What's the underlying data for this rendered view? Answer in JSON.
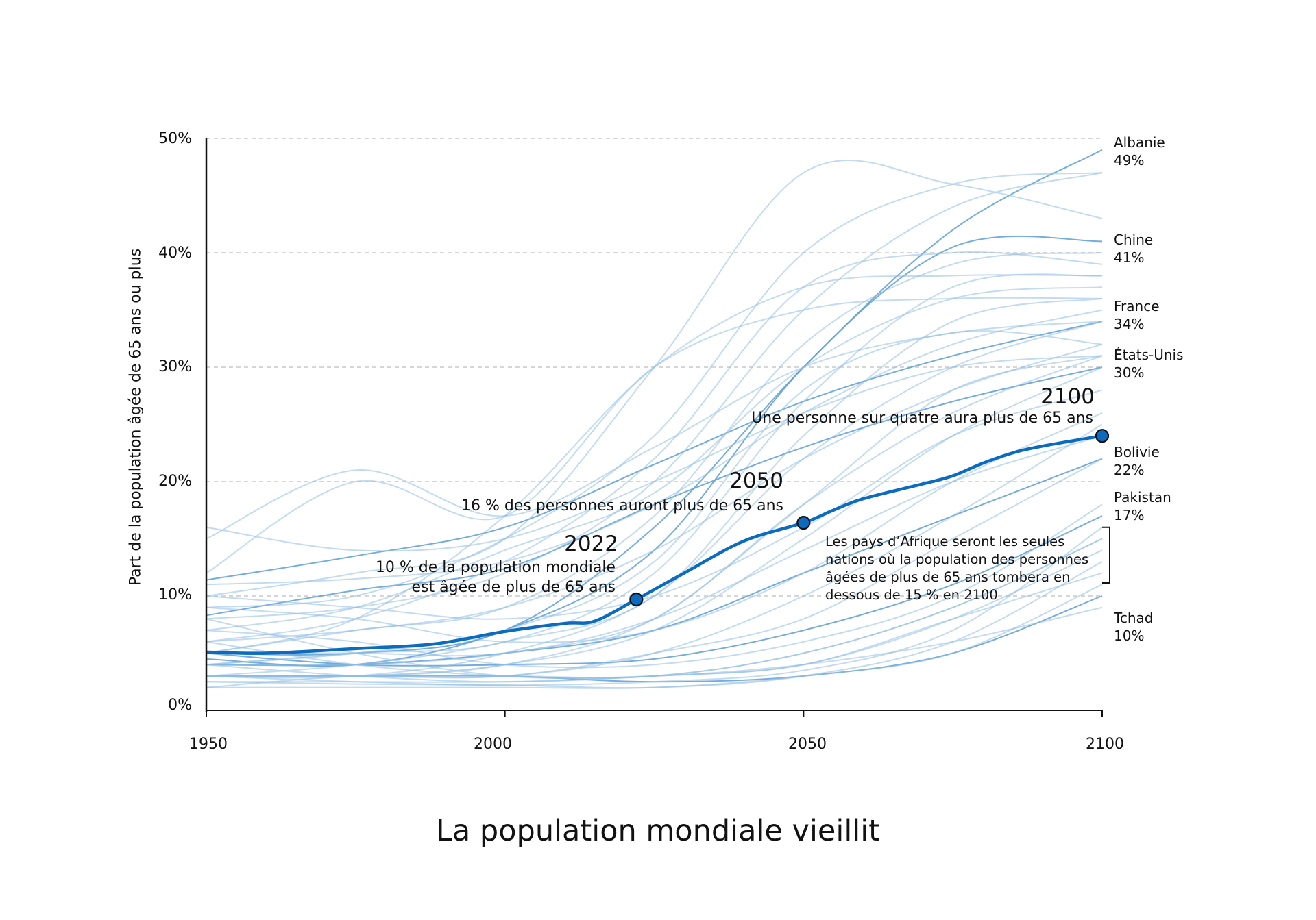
{
  "chart_data": {
    "type": "line",
    "title": "La population mondiale vieillit",
    "ylabel": "Part de la population âgée de 65 ans ou plus",
    "xlabel": "",
    "xlim": [
      1950,
      2100
    ],
    "ylim": [
      0,
      50
    ],
    "x_ticks": [
      "1950",
      "2000",
      "2050",
      "2100"
    ],
    "y_ticks": [
      "0%",
      "10%",
      "20%",
      "30%",
      "40%",
      "50%"
    ],
    "grid": "horizontal dashed",
    "colors": {
      "world": "#0b6cbf",
      "countries": "#8fbde3",
      "grid": "#c8c8c8"
    },
    "world_series": {
      "x": [
        1950,
        1960,
        1975,
        1988,
        2000,
        2010,
        2015,
        2022,
        2030,
        2040,
        2050,
        2055,
        2060,
        2070,
        2075,
        2080,
        2085,
        2090,
        2100
      ],
      "y": [
        5.1,
        5.0,
        5.4,
        5.8,
        6.9,
        7.6,
        7.8,
        9.7,
        12.0,
        14.8,
        16.4,
        17.5,
        18.5,
        19.8,
        20.5,
        21.6,
        22.5,
        23.1,
        24.0
      ]
    },
    "country_x": [
      1950,
      1975,
      2000,
      2025,
      2050,
      2075,
      2100
    ],
    "country_series": [
      {
        "name": "Albanie",
        "label": "Albanie",
        "value_label": "49%",
        "values": [
          5,
          5,
          7,
          16,
          30,
          42,
          49
        ]
      },
      {
        "name": "Chine",
        "label": "Chine",
        "value_label": "41%",
        "values": [
          4.5,
          4,
          7,
          14,
          30,
          40.5,
          41
        ]
      },
      {
        "name": "France",
        "label": "France",
        "value_label": "34%",
        "values": [
          11.4,
          13.5,
          16,
          21.5,
          27,
          31,
          34
        ]
      },
      {
        "name": "États-Unis",
        "label": "États-Unis",
        "value_label": "30%",
        "values": [
          8.3,
          10.5,
          12.4,
          18,
          23,
          27,
          30
        ]
      },
      {
        "name": "Bolivie",
        "label": "Bolivie",
        "value_label": "22%",
        "values": [
          4,
          4,
          5,
          7,
          12,
          17,
          22
        ]
      },
      {
        "name": "Pakistan",
        "label": "Pakistan",
        "value_label": "17%",
        "values": [
          5,
          4,
          4,
          4.5,
          7,
          11,
          17
        ]
      },
      {
        "name": "Tchad",
        "label": "Tchad",
        "value_label": "10%",
        "values": [
          3,
          3,
          3,
          2.5,
          3,
          5,
          10
        ]
      },
      {
        "values": [
          5,
          8,
          17,
          30,
          37,
          38,
          38
        ]
      },
      {
        "values": [
          16,
          14,
          15,
          20,
          26,
          30,
          31
        ]
      },
      {
        "values": [
          15,
          21,
          17,
          23,
          30,
          33,
          34
        ]
      },
      {
        "values": [
          12,
          20,
          17,
          30,
          35,
          36,
          36
        ]
      },
      {
        "values": [
          10,
          12,
          15,
          30,
          47,
          46,
          43
        ]
      },
      {
        "values": [
          9,
          10,
          15,
          24,
          40,
          46,
          47
        ]
      },
      {
        "values": [
          8,
          9,
          12,
          20,
          35,
          44,
          47
        ]
      },
      {
        "values": [
          7,
          9,
          14,
          19,
          30,
          36,
          37
        ]
      },
      {
        "values": [
          6,
          8,
          13,
          22,
          37,
          40,
          39
        ]
      },
      {
        "values": [
          5,
          7,
          9,
          17,
          32,
          39,
          40
        ]
      },
      {
        "values": [
          4,
          5,
          6,
          12,
          27,
          37,
          38
        ]
      },
      {
        "values": [
          3,
          4,
          6,
          10,
          24,
          34,
          36
        ]
      },
      {
        "values": [
          4,
          5,
          7,
          13,
          28,
          33,
          32
        ]
      },
      {
        "values": [
          3,
          3,
          5,
          10,
          22,
          30,
          34
        ]
      },
      {
        "values": [
          3,
          3,
          4,
          8,
          18,
          28,
          31
        ]
      },
      {
        "values": [
          4,
          4,
          5,
          8,
          18,
          26,
          31
        ]
      },
      {
        "values": [
          3,
          3,
          4,
          7,
          15,
          24,
          30
        ]
      },
      {
        "values": [
          3,
          3,
          3,
          5,
          10,
          17,
          25
        ]
      },
      {
        "values": [
          2,
          3,
          3,
          5,
          8,
          15,
          22
        ]
      },
      {
        "values": [
          3,
          3,
          3,
          3,
          5,
          9,
          15
        ]
      },
      {
        "values": [
          2.5,
          2.5,
          2.5,
          3,
          4,
          8,
          14
        ]
      },
      {
        "values": [
          2,
          2,
          2,
          2,
          3,
          5,
          11
        ]
      },
      {
        "values": [
          2.5,
          2.3,
          2.2,
          2,
          3,
          6,
          13
        ]
      },
      {
        "values": [
          3,
          2.5,
          2.2,
          2.5,
          3.5,
          7,
          16
        ]
      },
      {
        "values": [
          4,
          3,
          2.5,
          3,
          4,
          8,
          12
        ]
      },
      {
        "values": [
          6,
          4,
          3,
          3,
          5,
          9,
          15
        ]
      },
      {
        "values": [
          8,
          5,
          3,
          3,
          4,
          6,
          9
        ]
      },
      {
        "values": [
          7,
          6,
          4,
          4,
          6,
          10,
          18
        ]
      },
      {
        "values": [
          9,
          8,
          6,
          7,
          12,
          20,
          26
        ]
      },
      {
        "values": [
          10,
          9,
          8,
          10,
          16,
          24,
          28
        ]
      },
      {
        "values": [
          5,
          5,
          5,
          8,
          14,
          20,
          24
        ]
      },
      {
        "values": [
          11,
          11.5,
          13,
          18,
          26,
          32,
          35
        ]
      },
      {
        "values": [
          6,
          7,
          9,
          14,
          22,
          28,
          32
        ]
      }
    ],
    "highlights": [
      {
        "year": 2022,
        "value": 9.7,
        "heading": "2022",
        "lines": [
          "10 % de la population mondiale",
          "est âgée de plus de 65 ans"
        ]
      },
      {
        "year": 2050,
        "value": 16.4,
        "heading": "2050",
        "lines": [
          "16 % des personnes auront plus de 65 ans"
        ]
      },
      {
        "year": 2100,
        "value": 24.0,
        "heading": "2100",
        "lines": [
          "Une personne sur quatre aura plus de 65 ans"
        ]
      }
    ],
    "africa_note": [
      "Les pays d’Afrique seront les seules",
      "nations où la population des personnes",
      "âgées de plus de 65 ans tombera en",
      "dessous de 15 % en 2100"
    ],
    "africa_bracket_range": [
      10,
      16
    ]
  }
}
